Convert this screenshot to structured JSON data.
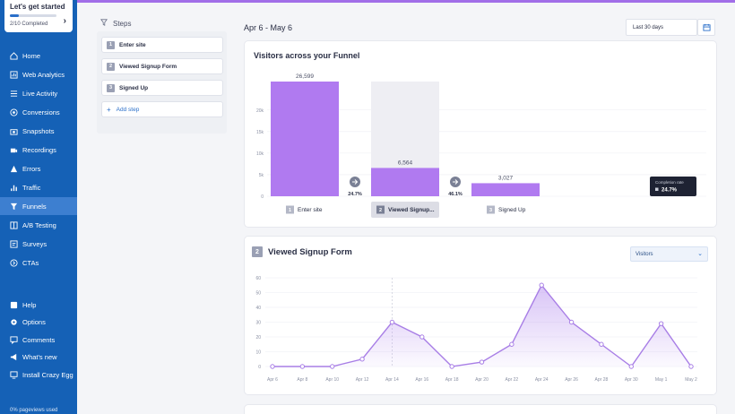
{
  "sidebar": {
    "get_started": {
      "title": "Let's get started",
      "progress_text": "2/10 Completed",
      "progress_fraction": 0.2
    },
    "items": [
      {
        "label": "Home",
        "icon": "home-icon"
      },
      {
        "label": "Web Analytics",
        "icon": "analytics-icon"
      },
      {
        "label": "Live Activity",
        "icon": "list-icon"
      },
      {
        "label": "Conversions",
        "icon": "target-icon"
      },
      {
        "label": "Snapshots",
        "icon": "camera-icon"
      },
      {
        "label": "Recordings",
        "icon": "video-icon"
      },
      {
        "label": "Errors",
        "icon": "warning-icon"
      },
      {
        "label": "Traffic",
        "icon": "bar-chart-icon"
      },
      {
        "label": "Funnels",
        "icon": "funnel-icon",
        "active": true
      },
      {
        "label": "A/B Testing",
        "icon": "ab-test-icon"
      },
      {
        "label": "Surveys",
        "icon": "survey-icon"
      },
      {
        "label": "CTAs",
        "icon": "cta-icon"
      }
    ],
    "bottom_items": [
      {
        "label": "Help",
        "icon": "help-icon"
      },
      {
        "label": "Options",
        "icon": "gear-icon"
      },
      {
        "label": "Comments",
        "icon": "comment-icon"
      },
      {
        "label": "What's new",
        "icon": "megaphone-icon"
      },
      {
        "label": "Install Crazy Egg",
        "icon": "install-icon"
      }
    ],
    "footer": "0% pageviews used"
  },
  "steps": {
    "heading": "Steps",
    "items": [
      {
        "num": "1",
        "label": "Enter site"
      },
      {
        "num": "2",
        "label": "Viewed Signup Form"
      },
      {
        "num": "3",
        "label": "Signed Up"
      }
    ],
    "add_label": "Add step"
  },
  "header": {
    "date_range": "Apr 6 - May 6",
    "range_select": "Last 30 days"
  },
  "funnel_card": {
    "title": "Visitors across your Funnel",
    "tooltip": {
      "title": "Completion rate",
      "value": "24.7%"
    }
  },
  "step_card": {
    "num": "2",
    "title": "Viewed Signup Form",
    "dropdown": "Visitors"
  },
  "colors": {
    "accent": "#a16ee8",
    "bar": "#b07af0",
    "sidebar": "#1561b6",
    "line": "#a87ee6"
  },
  "chart_data": [
    {
      "type": "bar",
      "title": "Visitors across your Funnel",
      "categories": [
        "Enter site",
        "Viewed Signup...",
        "Signed Up"
      ],
      "step_numbers": [
        "1",
        "2",
        "3"
      ],
      "values": [
        26599,
        6564,
        3027
      ],
      "value_labels": [
        "26,599",
        "6,564",
        "3,027"
      ],
      "conversion_labels": [
        "24.7%",
        "46.1%"
      ],
      "yticks": [
        "0",
        "5k",
        "10k",
        "15k",
        "20k"
      ],
      "ylim": [
        0,
        26599
      ],
      "highlighted_category": "Viewed Signup..."
    },
    {
      "type": "area",
      "title": "Viewed Signup Form",
      "series": [
        {
          "name": "Visitors",
          "values": [
            0,
            0,
            0,
            5,
            30,
            20,
            0,
            3,
            15,
            55,
            30,
            15,
            0,
            29,
            0
          ]
        }
      ],
      "x": [
        "Apr 6",
        "Apr 8",
        "Apr 10",
        "Apr 12",
        "Apr 14",
        "Apr 16",
        "Apr 18",
        "Apr 20",
        "Apr 22",
        "Apr 24",
        "Apr 26",
        "Apr 28",
        "Apr 30",
        "May 1",
        "May 2"
      ],
      "yticks": [
        "0",
        "10",
        "20",
        "30",
        "40",
        "50",
        "60"
      ],
      "ylim": [
        0,
        60
      ],
      "marker_x": "Apr 14"
    }
  ]
}
